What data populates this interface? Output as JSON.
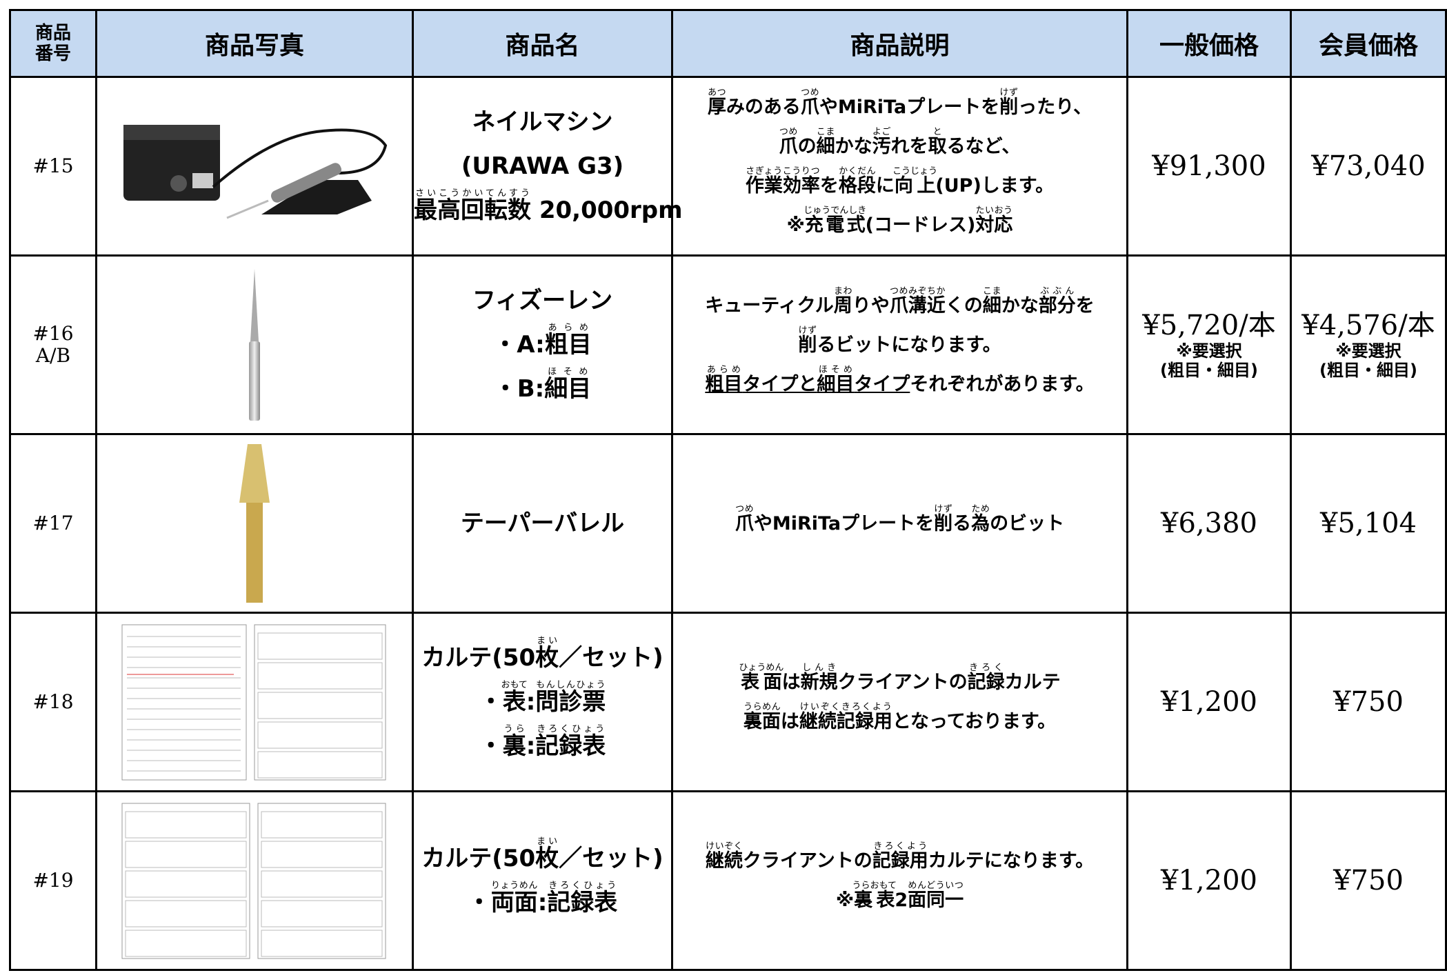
{
  "header": {
    "columns": [
      [
        "商品",
        "番号"
      ],
      [
        "商品写真"
      ],
      [
        "商品名"
      ],
      [
        "商品説明"
      ],
      [
        "一般価格"
      ],
      [
        "会員価格"
      ]
    ]
  },
  "rows": [
    {
      "number": [
        "#15"
      ],
      "name": [
        [
          "ネイルマシン"
        ],
        [
          "(URAWA G3)"
        ],
        [
          {
            "text": "最高回転数",
            "ruby": "さいこうかいてんすう"
          },
          " 20,000rpm"
        ]
      ],
      "description": [
        [
          {
            "text": "厚",
            "ruby": "あつ"
          },
          "みのある",
          {
            "text": "爪",
            "ruby": "つめ"
          },
          "やMiRiTaプレートを",
          {
            "text": "削",
            "ruby": "けず"
          },
          "ったり、"
        ],
        [
          {
            "text": "爪",
            "ruby": "つめ"
          },
          "の",
          {
            "text": "細",
            "ruby": "こま"
          },
          "かな",
          {
            "text": "汚",
            "ruby": "よご"
          },
          "れを",
          {
            "text": "取",
            "ruby": "と"
          },
          "るなど、"
        ],
        [
          {
            "text": "作業効率",
            "ruby": "さぎょうこうりつ"
          },
          "を",
          {
            "text": "格段",
            "ruby": "かくだん"
          },
          "に",
          {
            "text": "向上",
            "ruby": "こうじょう"
          },
          "(UP)します。"
        ],
        [
          "※",
          {
            "text": "充電式",
            "ruby": "じゅうでんしき"
          },
          "(コードレス)",
          {
            "text": "対応",
            "ruby": "たいおう"
          }
        ]
      ],
      "price": [
        "¥91,300"
      ],
      "member_price": [
        "¥73,040"
      ]
    },
    {
      "number": [
        "#16",
        "A/B"
      ],
      "name": [
        [
          "フィズーレン"
        ],
        [
          "・A:",
          {
            "text": "粗目",
            "ruby": "あらめ"
          }
        ],
        [
          "・B:",
          {
            "text": "細目",
            "ruby": "ほそめ"
          }
        ]
      ],
      "description": [
        [
          "キューティクル",
          {
            "text": "周",
            "ruby": "まわ"
          },
          "りや",
          {
            "text": "爪溝近",
            "ruby": "つめみぞちか"
          },
          "くの",
          {
            "text": "細",
            "ruby": "こま"
          },
          "かな",
          {
            "text": "部分",
            "ruby": "ぶぶん"
          },
          "を"
        ],
        [
          {
            "text": "削",
            "ruby": "けず"
          },
          "るビットになります。"
        ],
        [
          {
            "text": "粗目",
            "ruby": "あらめ",
            "underline": true
          },
          {
            "text": "タイプと",
            "underline": true
          },
          {
            "text": "細目",
            "ruby": "ほそめ",
            "underline": true
          },
          {
            "text": "タイプ",
            "underline": true
          },
          "それぞれがあります。"
        ]
      ],
      "price": [
        "¥5,720/本",
        "※要選択",
        "(粗目・細目)"
      ],
      "member_price": [
        "¥4,576/本",
        "※要選択",
        "(粗目・細目)"
      ]
    },
    {
      "number": [
        "#17"
      ],
      "name": [
        [
          "テーパーバレル"
        ]
      ],
      "description": [
        [
          {
            "text": "爪",
            "ruby": "つめ"
          },
          "やMiRiTaプレートを",
          {
            "text": "削",
            "ruby": "けず"
          },
          "る",
          {
            "text": "為",
            "ruby": "ため"
          },
          "のビット"
        ]
      ],
      "price": [
        "¥6,380"
      ],
      "member_price": [
        "¥5,104"
      ]
    },
    {
      "number": [
        "#18"
      ],
      "name": [
        [
          "カルテ(50",
          {
            "text": "枚",
            "ruby": "まい"
          },
          "／セット)"
        ],
        [
          "・",
          {
            "text": "表",
            "ruby": "おもて"
          },
          ":",
          {
            "text": "問診票",
            "ruby": "もんしんひょう"
          }
        ],
        [
          "・",
          {
            "text": "裏",
            "ruby": "うら"
          },
          ":",
          {
            "text": "記録表",
            "ruby": "きろくひょう"
          }
        ]
      ],
      "description": [
        [
          {
            "text": "表面",
            "ruby": "ひょうめん"
          },
          "は",
          {
            "text": "新規",
            "ruby": "しんき"
          },
          "クライアントの",
          {
            "text": "記録",
            "ruby": "きろく"
          },
          "カルテ"
        ],
        [
          {
            "text": "裏面",
            "ruby": "うらめん"
          },
          "は",
          {
            "text": "継続記録用",
            "ruby": "けいぞくきろくよう"
          },
          "となっております。"
        ]
      ],
      "price": [
        "¥1,200"
      ],
      "member_price": [
        "¥750"
      ]
    },
    {
      "number": [
        "#19"
      ],
      "name": [
        [
          "カルテ(50",
          {
            "text": "枚",
            "ruby": "まい"
          },
          "／セット)"
        ],
        [
          "・",
          {
            "text": "両面",
            "ruby": "りょうめん"
          },
          ":",
          {
            "text": "記録表",
            "ruby": "きろくひょう"
          }
        ]
      ],
      "description": [
        [
          {
            "text": "継続",
            "ruby": "けいぞく"
          },
          "クライアントの",
          {
            "text": "記録用",
            "ruby": "きろくよう"
          },
          "カルテになります。"
        ],
        [
          "※",
          {
            "text": "裏表",
            "ruby": "うらおもて"
          },
          "2",
          {
            "text": "面同一",
            "ruby": "めんどういつ"
          }
        ]
      ],
      "price": [
        "¥1,200"
      ],
      "member_price": [
        "¥750"
      ]
    }
  ]
}
